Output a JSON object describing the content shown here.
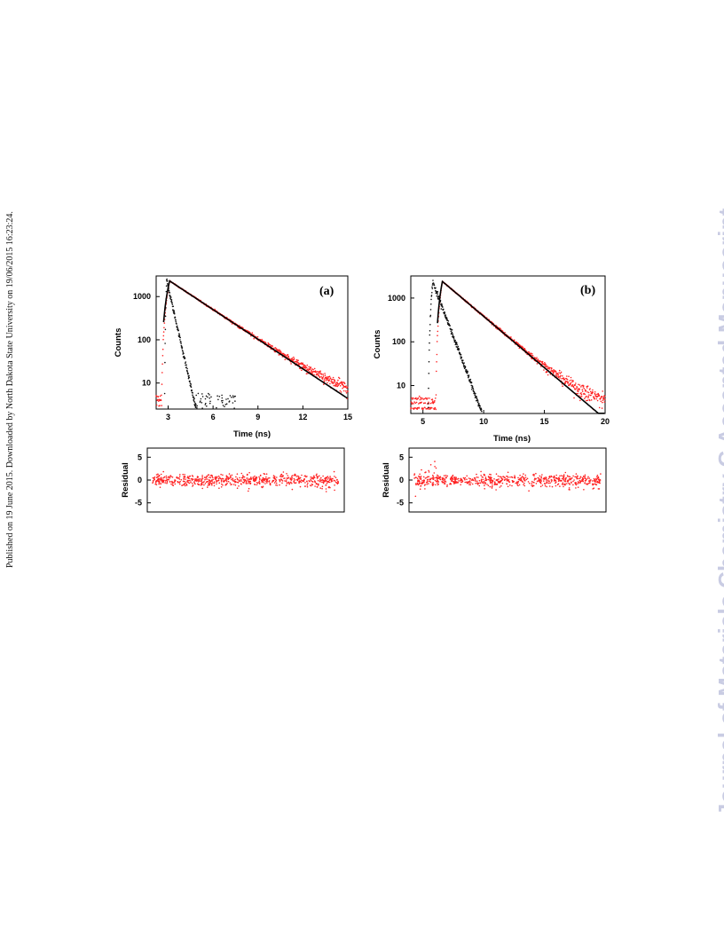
{
  "page": {
    "side_text_left": "Published on 19 June 2015. Downloaded by North Dakota State University on 19/06/2015 16:23:24.",
    "watermark_right": "Journal of Materials Chemistry C Accepted Manuscript"
  },
  "colors": {
    "fit": "#000000",
    "data": "#ff2020",
    "irf": "#111111"
  },
  "chart_data": [
    {
      "type": "scatter",
      "panel_label": "(a)",
      "xlabel": "Time (ns)",
      "ylabel": "Counts",
      "xlim": [
        2.2,
        15
      ],
      "ylim": [
        2.5,
        3000
      ],
      "yscale": "log",
      "xticks": [
        3,
        6,
        9,
        12,
        15
      ],
      "yticks": [
        10,
        100,
        1000
      ],
      "series": [
        {
          "role": "irf",
          "peak_x": 2.9,
          "peak_y": 2400,
          "rise_x": 2.75,
          "decay_per_ns": 3.5,
          "tail_to_x": 7.5
        },
        {
          "role": "decay_data",
          "peak_x": 3.1,
          "peak_y": 2300,
          "lifetime_ns": 1.9,
          "floor": 3,
          "to_x": 15
        },
        {
          "role": "fit",
          "peak_x": 3.1,
          "peak_y": 2300,
          "lifetime_ns": 1.9,
          "to_x": 15
        }
      ],
      "residual": {
        "ylabel": "Residual",
        "ylim": [
          -7,
          7
        ],
        "yticks": [
          5,
          0,
          -5
        ]
      }
    },
    {
      "type": "scatter",
      "panel_label": "(b)",
      "xlabel": "Time (ns)",
      "ylabel": "Counts",
      "xlim": [
        4,
        20
      ],
      "ylim": [
        2.3,
        3200
      ],
      "yscale": "log",
      "xticks": [
        5,
        10,
        15,
        20
      ],
      "yticks": [
        10,
        100,
        1000
      ],
      "series": [
        {
          "role": "irf",
          "peak_x": 5.8,
          "peak_y": 2400,
          "rise_x": 5.4,
          "decay_per_ns": 1.7,
          "tail_to_x": 10
        },
        {
          "role": "decay_data",
          "peak_x": 6.6,
          "peak_y": 2400,
          "lifetime_ns": 1.85,
          "floor": 3,
          "to_x": 20
        },
        {
          "role": "fit",
          "peak_x": 6.6,
          "peak_y": 2400,
          "lifetime_ns": 1.85,
          "to_x": 20
        }
      ],
      "residual": {
        "ylabel": "Residual",
        "ylim": [
          -7,
          7
        ],
        "yticks": [
          5,
          0,
          -5
        ]
      }
    }
  ]
}
